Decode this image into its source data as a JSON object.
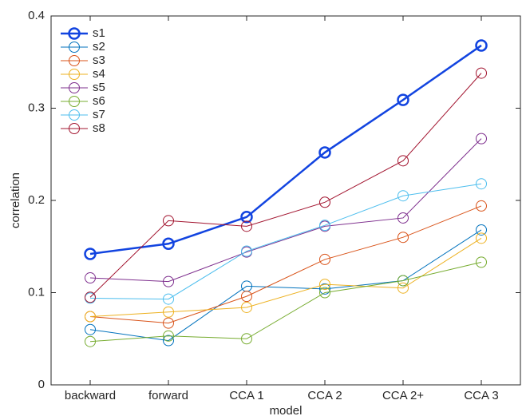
{
  "chart_data": {
    "type": "line",
    "xlabel": "model",
    "ylabel": "correlation",
    "categories": [
      "backward",
      "forward",
      "CCA 1",
      "CCA 2",
      "CCA 2+",
      "CCA 3"
    ],
    "ylim": [
      0,
      0.4
    ],
    "yticks": [
      0,
      0.1,
      0.2,
      0.3,
      0.4
    ],
    "legend": "upper-left",
    "series": [
      {
        "name": "s1",
        "color": "#1244e0",
        "width": 2.5,
        "values": [
          0.142,
          0.153,
          0.182,
          0.252,
          0.309,
          0.368
        ]
      },
      {
        "name": "s2",
        "color": "#0072bd",
        "width": 1,
        "values": [
          0.06,
          0.048,
          0.107,
          0.104,
          0.113,
          0.168
        ]
      },
      {
        "name": "s3",
        "color": "#d95319",
        "width": 1,
        "values": [
          0.074,
          0.067,
          0.096,
          0.136,
          0.16,
          0.194
        ]
      },
      {
        "name": "s4",
        "color": "#edb120",
        "width": 1,
        "values": [
          0.074,
          0.079,
          0.084,
          0.109,
          0.105,
          0.159
        ]
      },
      {
        "name": "s5",
        "color": "#7e2f8e",
        "width": 1,
        "values": [
          0.116,
          0.112,
          0.144,
          0.172,
          0.181,
          0.267
        ]
      },
      {
        "name": "s6",
        "color": "#77ac30",
        "width": 1,
        "values": [
          0.047,
          0.053,
          0.05,
          0.1,
          0.113,
          0.133
        ]
      },
      {
        "name": "s7",
        "color": "#4dbeee",
        "width": 1,
        "values": [
          0.094,
          0.093,
          0.145,
          0.173,
          0.205,
          0.218
        ]
      },
      {
        "name": "s8",
        "color": "#a2142f",
        "width": 1,
        "values": [
          0.095,
          0.178,
          0.172,
          0.198,
          0.243,
          0.338
        ]
      }
    ]
  }
}
